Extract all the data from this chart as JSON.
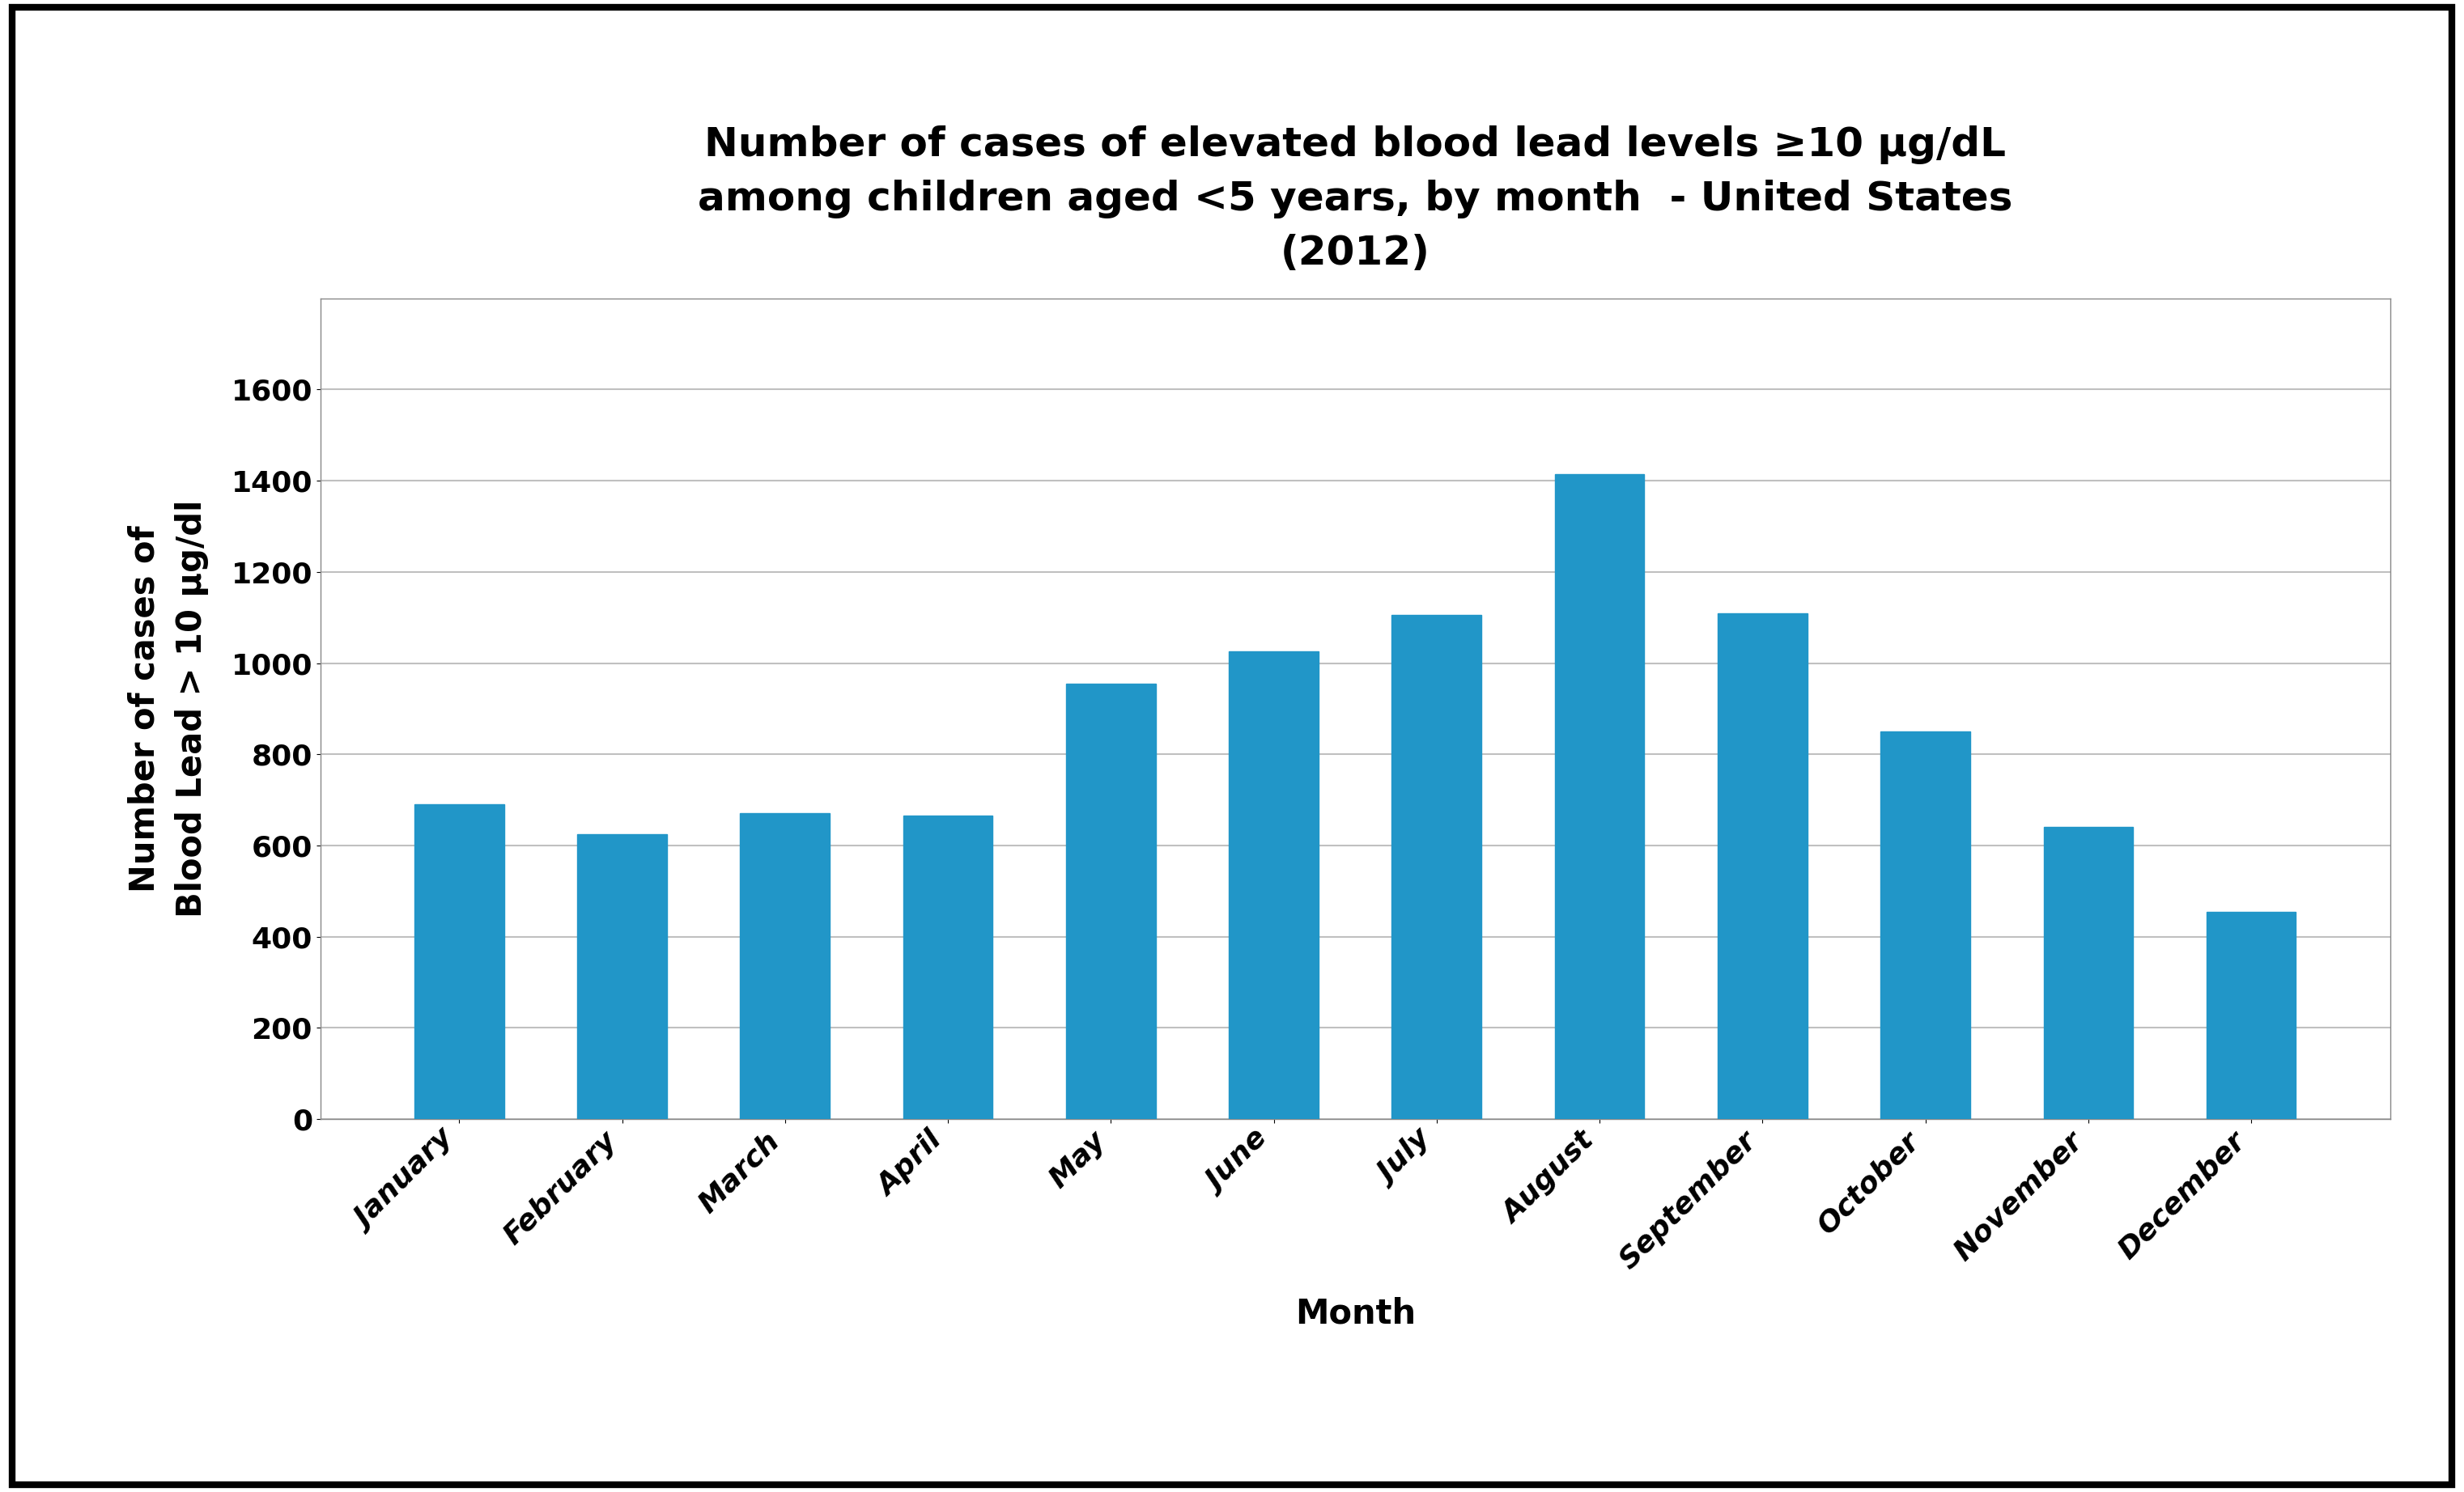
{
  "title_line1": "Number of cases of elevated blood lead levels ≥10 μg/dL",
  "title_line2": "among children aged <5 years, by month  - United States",
  "title_line3": "(2012)",
  "xlabel": "Month",
  "ylabel_line1": "Number of cases of",
  "ylabel_line2": "Blood Lead > 10 μg/dl",
  "categories": [
    "January",
    "February",
    "March",
    "April",
    "May",
    "June",
    "July",
    "August",
    "September",
    "October",
    "November",
    "December"
  ],
  "values": [
    690,
    625,
    670,
    665,
    955,
    1025,
    1105,
    1415,
    1110,
    850,
    640,
    455
  ],
  "bar_color": "#2196C8",
  "ylim": [
    0,
    1800
  ],
  "yticks": [
    0,
    200,
    400,
    600,
    800,
    1000,
    1200,
    1400,
    1600
  ],
  "background_color": "#ffffff",
  "border_color": "#000000",
  "title_fontsize": 36,
  "axis_label_fontsize": 30,
  "tick_fontsize": 26,
  "bar_width": 0.55,
  "grid_color": "#c0c0c0",
  "fig_width": 30.44,
  "fig_height": 18.44
}
